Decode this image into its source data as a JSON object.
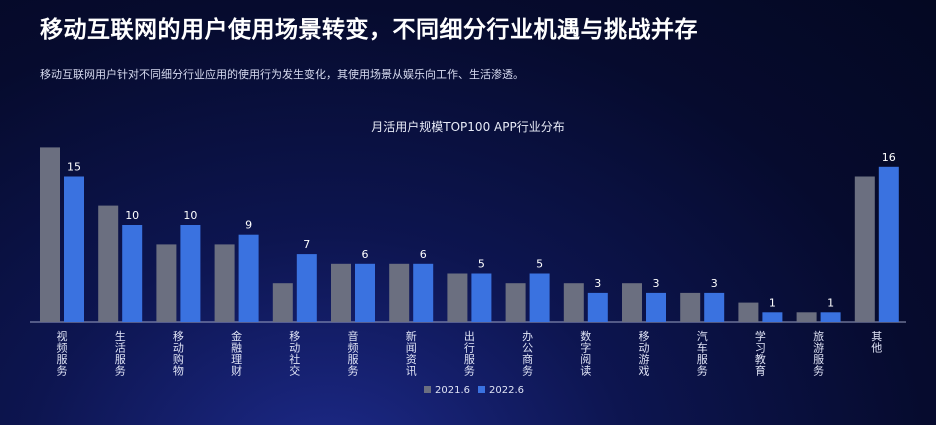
{
  "header": {
    "title": "移动互联网的用户使用场景转变，不同细分行业机遇与挑战并存",
    "subtitle": "移动互联网用户针对不同细分行业应用的使用行为发生变化，其使用场景从娱乐向工作、生活渗透。"
  },
  "chart_data": {
    "type": "bar",
    "title": "月活用户规模TOP100 APP行业分布",
    "categories": [
      "视频服务",
      "生活服务",
      "移动购物",
      "金融理财",
      "移动社交",
      "音频服务",
      "新闻资讯",
      "出行服务",
      "办公商务",
      "数字阅读",
      "移动游戏",
      "汽车服务",
      "学习教育",
      "旅游服务",
      "其他"
    ],
    "series": [
      {
        "name": "2021.6",
        "values": [
          18,
          12,
          8,
          8,
          4,
          6,
          6,
          5,
          4,
          4,
          4,
          3,
          2,
          1,
          15
        ],
        "color": "#6b6f80"
      },
      {
        "name": "2022.6",
        "values": [
          15,
          10,
          10,
          9,
          7,
          6,
          6,
          5,
          5,
          3,
          3,
          3,
          1,
          1,
          16
        ],
        "color": "#3a72e0"
      }
    ],
    "data_labels_series": "2022.6",
    "ylim": [
      0,
      18
    ],
    "grid": false,
    "legend": "bottom"
  }
}
